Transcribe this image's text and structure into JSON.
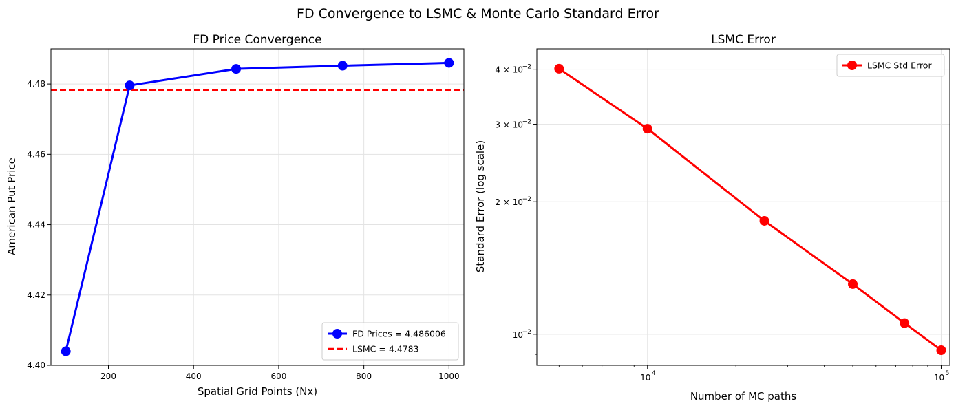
{
  "suptitle": "FD Convergence to LSMC & Monte Carlo Standard Error",
  "chart_data": [
    {
      "type": "line",
      "title": "FD Price Convergence",
      "xlabel": "Spatial Grid Points (Nx)",
      "ylabel": "American Put Price",
      "xlim": [
        65,
        1035
      ],
      "ylim": [
        4.4,
        4.49
      ],
      "x_ticks": [
        200,
        400,
        600,
        800,
        1000
      ],
      "y_ticks": [
        4.4,
        4.42,
        4.44,
        4.46,
        4.48
      ],
      "x_tick_labels": [
        "200",
        "400",
        "600",
        "800",
        "1000"
      ],
      "y_tick_labels": [
        "4.40",
        "4.42",
        "4.44",
        "4.46",
        "4.48"
      ],
      "grid": true,
      "legend_position": "lower-right",
      "series": [
        {
          "name": "FD Prices = 4.486006",
          "style": "solid-marker",
          "color": "#0000ff",
          "x": [
            100,
            250,
            500,
            750,
            1000
          ],
          "y": [
            4.404,
            4.4796,
            4.4843,
            4.4852,
            4.486
          ]
        }
      ],
      "hlines": [
        {
          "name": "LSMC = 4.4783",
          "y": 4.4783,
          "color": "#ff0000",
          "style": "dashed"
        }
      ]
    },
    {
      "type": "line",
      "title": "LSMC Error",
      "xlabel": "Number of MC paths",
      "ylabel": "Standard Error (log scale)",
      "xscale": "log",
      "yscale": "log",
      "xlim": [
        4200,
        107000
      ],
      "ylim": [
        0.0085,
        0.0445
      ],
      "x_ticks": [
        10000,
        100000
      ],
      "x_tick_labels": [
        [
          "10",
          "4"
        ],
        [
          "10",
          "5"
        ]
      ],
      "y_ticks": [
        0.01,
        0.02,
        0.03,
        0.04
      ],
      "y_tick_labels": [
        [
          "10",
          "−2"
        ],
        [
          "2 × 10",
          "−2"
        ],
        [
          "3 × 10",
          "−2"
        ],
        [
          "4 × 10",
          "−2"
        ]
      ],
      "grid": true,
      "legend_position": "upper-right",
      "series": [
        {
          "name": "LSMC Std Error",
          "style": "solid-marker",
          "color": "#ff0000",
          "x": [
            5000,
            10000,
            25000,
            50000,
            75000,
            100000
          ],
          "y": [
            0.0401,
            0.0293,
            0.0181,
            0.013,
            0.0106,
            0.0092
          ]
        }
      ]
    }
  ]
}
